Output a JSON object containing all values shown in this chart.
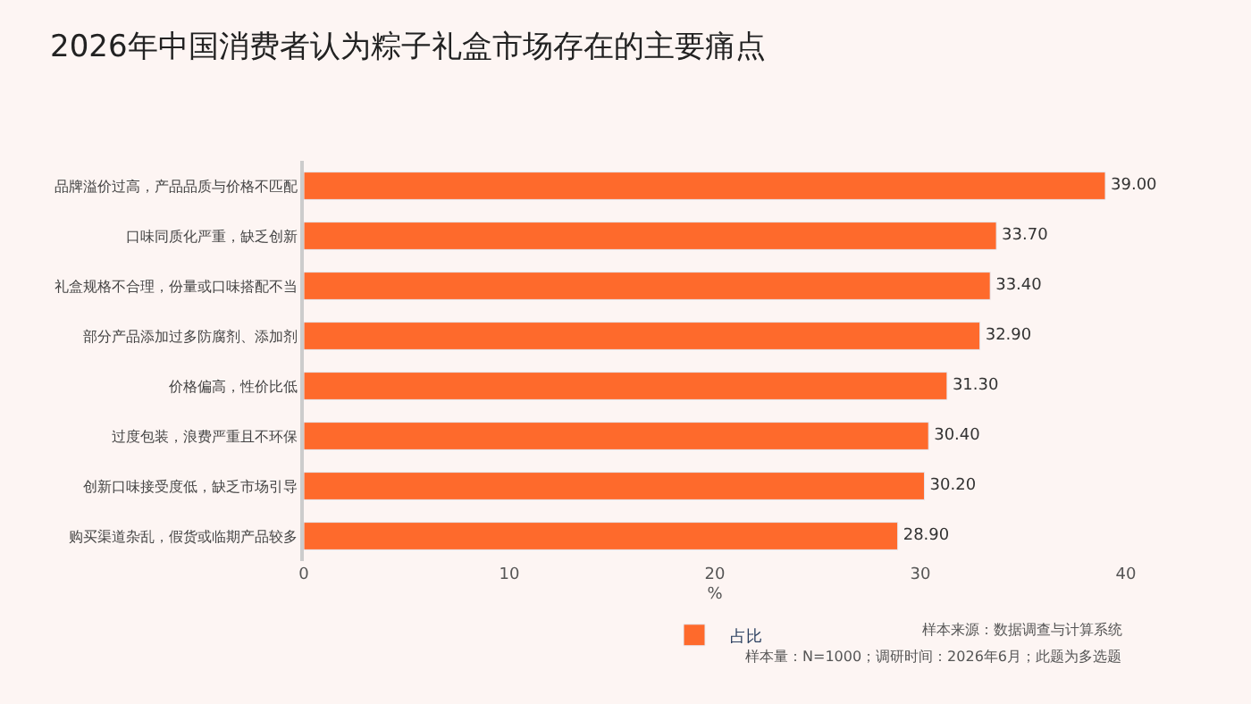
{
  "chart_data": {
    "type": "bar",
    "orientation": "horizontal",
    "title": "2026年中国消费者认为粽子礼盒市场存在的主要痛点",
    "categories": [
      "品牌溢价过高，产品品质与价格不匹配",
      "口味同质化严重，缺乏创新",
      "礼盒规格不合理，份量或口味搭配不当",
      "部分产品添加过多防腐剂、添加剂",
      "价格偏高，性价比低",
      "过度包装，浪费严重且不环保",
      "创新口味接受度低，缺乏市场引导",
      "购买渠道杂乱，假货或临期产品较多"
    ],
    "series": [
      {
        "name": "占比",
        "color": "#fe6a2c",
        "values": [
          39.0,
          33.7,
          33.4,
          32.9,
          31.3,
          30.4,
          30.2,
          28.9
        ],
        "value_labels": [
          "39.00",
          "33.70",
          "33.40",
          "32.90",
          "31.30",
          "30.40",
          "30.20",
          "28.90"
        ]
      }
    ],
    "xlabel": "%",
    "xlim": [
      0,
      40
    ],
    "xticks": [
      0,
      10,
      20,
      30,
      40
    ],
    "grid": false,
    "legend": "bottom",
    "annotations": [
      "样本来源：数据调查与计算系统",
      "样本量：N=1000；调研时间：2026年6月；此题为多选题"
    ]
  }
}
